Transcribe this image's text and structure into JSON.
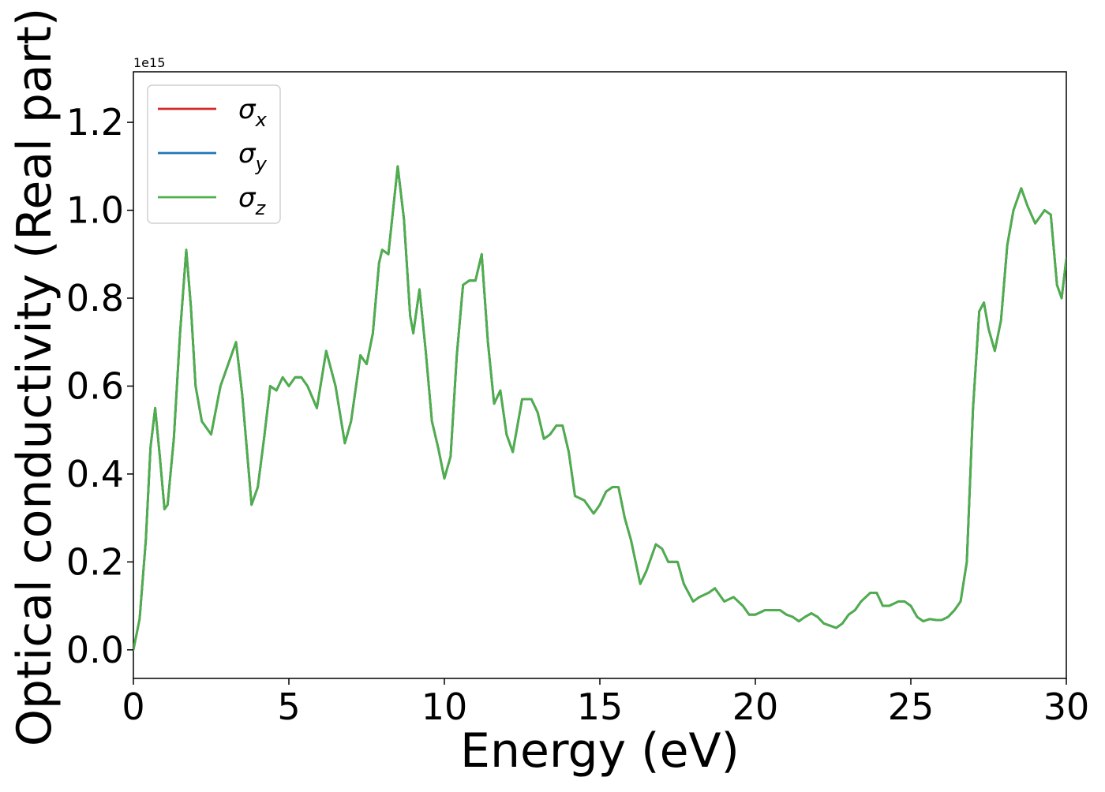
{
  "chart_data": {
    "type": "line",
    "title": "",
    "xlabel": "Energy (eV)",
    "ylabel": "Optical conductivity (Real part)",
    "y_offset_label": "1e15",
    "xlim": [
      0,
      30
    ],
    "ylim": [
      -0.065,
      1.315
    ],
    "y_scale_factor": 1000000000000000.0,
    "xticks": [
      0,
      5,
      10,
      15,
      20,
      25,
      30
    ],
    "yticks": [
      0.0,
      0.2,
      0.4,
      0.6,
      0.8,
      1.0,
      1.2
    ],
    "xtick_labels": [
      "0",
      "5",
      "10",
      "15",
      "20",
      "25",
      "30"
    ],
    "ytick_labels": [
      "0.0",
      "0.2",
      "0.4",
      "0.6",
      "0.8",
      "1.0",
      "1.2"
    ],
    "grid": false,
    "legend_position": "top-left",
    "series": [
      {
        "name": "σx",
        "name_base": "σ",
        "name_sub": "x",
        "color": "#d62728",
        "x": [
          0,
          0.2,
          0.4,
          0.55,
          0.7,
          0.85,
          1.0,
          1.1,
          1.3,
          1.5,
          1.7,
          1.85,
          2.0,
          2.2,
          2.5,
          2.8,
          3.1,
          3.3,
          3.5,
          3.8,
          4.0,
          4.2,
          4.4,
          4.6,
          4.8,
          5.0,
          5.2,
          5.4,
          5.6,
          5.9,
          6.2,
          6.5,
          6.8,
          7.0,
          7.3,
          7.5,
          7.7,
          7.9,
          8.0,
          8.2,
          8.5,
          8.7,
          8.9,
          9.0,
          9.2,
          9.4,
          9.6,
          9.8,
          10.0,
          10.2,
          10.4,
          10.6,
          10.8,
          11.0,
          11.2,
          11.4,
          11.6,
          11.8,
          12.0,
          12.2,
          12.5,
          12.8,
          13.0,
          13.2,
          13.4,
          13.6,
          13.8,
          14.0,
          14.2,
          14.5,
          14.8,
          15.0,
          15.2,
          15.4,
          15.6,
          15.8,
          16.0,
          16.3,
          16.5,
          16.8,
          17.0,
          17.2,
          17.5,
          17.7,
          18.0,
          18.2,
          18.5,
          18.7,
          19.0,
          19.3,
          19.6,
          19.8,
          20.0,
          20.3,
          20.6,
          20.8,
          21.0,
          21.2,
          21.4,
          21.6,
          21.8,
          22.0,
          22.2,
          22.4,
          22.6,
          22.8,
          23.0,
          23.2,
          23.4,
          23.7,
          23.9,
          24.1,
          24.3,
          24.6,
          24.8,
          25.0,
          25.2,
          25.4,
          25.6,
          25.8,
          26.0,
          26.2,
          26.4,
          26.6,
          26.8,
          27.0,
          27.2,
          27.35,
          27.5,
          27.7,
          27.9,
          28.1,
          28.3,
          28.55,
          28.75,
          29.0,
          29.3,
          29.5,
          29.7,
          29.85,
          30.0
        ],
        "y": [
          0.0,
          0.07,
          0.25,
          0.46,
          0.55,
          0.44,
          0.32,
          0.33,
          0.48,
          0.72,
          0.91,
          0.78,
          0.6,
          0.52,
          0.49,
          0.6,
          0.66,
          0.7,
          0.58,
          0.33,
          0.37,
          0.48,
          0.6,
          0.59,
          0.62,
          0.6,
          0.62,
          0.62,
          0.6,
          0.55,
          0.68,
          0.6,
          0.47,
          0.52,
          0.67,
          0.65,
          0.72,
          0.88,
          0.91,
          0.9,
          1.1,
          0.98,
          0.76,
          0.72,
          0.82,
          0.68,
          0.52,
          0.46,
          0.39,
          0.44,
          0.67,
          0.83,
          0.84,
          0.84,
          0.9,
          0.7,
          0.56,
          0.59,
          0.49,
          0.45,
          0.57,
          0.57,
          0.54,
          0.48,
          0.49,
          0.51,
          0.51,
          0.45,
          0.35,
          0.34,
          0.31,
          0.33,
          0.36,
          0.37,
          0.37,
          0.3,
          0.25,
          0.15,
          0.18,
          0.24,
          0.23,
          0.2,
          0.2,
          0.15,
          0.11,
          0.12,
          0.13,
          0.14,
          0.11,
          0.12,
          0.1,
          0.08,
          0.08,
          0.09,
          0.09,
          0.09,
          0.08,
          0.075,
          0.065,
          0.075,
          0.083,
          0.075,
          0.06,
          0.055,
          0.05,
          0.06,
          0.08,
          0.09,
          0.11,
          0.13,
          0.13,
          0.1,
          0.1,
          0.11,
          0.11,
          0.1,
          0.075,
          0.065,
          0.07,
          0.068,
          0.068,
          0.075,
          0.09,
          0.11,
          0.2,
          0.55,
          0.77,
          0.79,
          0.73,
          0.68,
          0.75,
          0.92,
          1.0,
          1.05,
          1.01,
          0.97,
          1.0,
          0.99,
          0.83,
          0.8,
          0.89
        ]
      },
      {
        "name": "σy",
        "name_base": "σ",
        "name_sub": "y",
        "color": "#1f77b4",
        "x": [
          0,
          0.2,
          0.4,
          0.55,
          0.7,
          0.85,
          1.0,
          1.1,
          1.3,
          1.5,
          1.7,
          1.85,
          2.0,
          2.2,
          2.5,
          2.8,
          3.1,
          3.3,
          3.5,
          3.8,
          4.0,
          4.2,
          4.4,
          4.6,
          4.8,
          5.0,
          5.2,
          5.4,
          5.6,
          5.9,
          6.2,
          6.5,
          6.8,
          7.0,
          7.3,
          7.5,
          7.7,
          7.9,
          8.0,
          8.2,
          8.5,
          8.7,
          8.9,
          9.0,
          9.2,
          9.4,
          9.6,
          9.8,
          10.0,
          10.2,
          10.4,
          10.6,
          10.8,
          11.0,
          11.2,
          11.4,
          11.6,
          11.8,
          12.0,
          12.2,
          12.5,
          12.8,
          13.0,
          13.2,
          13.4,
          13.6,
          13.8,
          14.0,
          14.2,
          14.5,
          14.8,
          15.0,
          15.2,
          15.4,
          15.6,
          15.8,
          16.0,
          16.3,
          16.5,
          16.8,
          17.0,
          17.2,
          17.5,
          17.7,
          18.0,
          18.2,
          18.5,
          18.7,
          19.0,
          19.3,
          19.6,
          19.8,
          20.0,
          20.3,
          20.6,
          20.8,
          21.0,
          21.2,
          21.4,
          21.6,
          21.8,
          22.0,
          22.2,
          22.4,
          22.6,
          22.8,
          23.0,
          23.2,
          23.4,
          23.7,
          23.9,
          24.1,
          24.3,
          24.6,
          24.8,
          25.0,
          25.2,
          25.4,
          25.6,
          25.8,
          26.0,
          26.2,
          26.4,
          26.6,
          26.8,
          27.0,
          27.2,
          27.35,
          27.5,
          27.7,
          27.9,
          28.1,
          28.3,
          28.55,
          28.75,
          29.0,
          29.3,
          29.5,
          29.7,
          29.85,
          30.0
        ],
        "y": [
          0.0,
          0.07,
          0.25,
          0.46,
          0.55,
          0.44,
          0.32,
          0.33,
          0.48,
          0.72,
          0.91,
          0.78,
          0.6,
          0.52,
          0.49,
          0.6,
          0.66,
          0.7,
          0.58,
          0.33,
          0.37,
          0.48,
          0.6,
          0.59,
          0.62,
          0.6,
          0.62,
          0.62,
          0.6,
          0.55,
          0.68,
          0.6,
          0.47,
          0.52,
          0.67,
          0.65,
          0.72,
          0.88,
          0.91,
          0.9,
          1.1,
          0.98,
          0.76,
          0.72,
          0.82,
          0.68,
          0.52,
          0.46,
          0.39,
          0.44,
          0.67,
          0.83,
          0.84,
          0.84,
          0.9,
          0.7,
          0.56,
          0.59,
          0.49,
          0.45,
          0.57,
          0.57,
          0.54,
          0.48,
          0.49,
          0.51,
          0.51,
          0.45,
          0.35,
          0.34,
          0.31,
          0.33,
          0.36,
          0.37,
          0.37,
          0.3,
          0.25,
          0.15,
          0.18,
          0.24,
          0.23,
          0.2,
          0.2,
          0.15,
          0.11,
          0.12,
          0.13,
          0.14,
          0.11,
          0.12,
          0.1,
          0.08,
          0.08,
          0.09,
          0.09,
          0.09,
          0.08,
          0.075,
          0.065,
          0.075,
          0.083,
          0.075,
          0.06,
          0.055,
          0.05,
          0.06,
          0.08,
          0.09,
          0.11,
          0.13,
          0.13,
          0.1,
          0.1,
          0.11,
          0.11,
          0.1,
          0.075,
          0.065,
          0.07,
          0.068,
          0.068,
          0.075,
          0.09,
          0.11,
          0.2,
          0.55,
          0.77,
          0.79,
          0.73,
          0.68,
          0.75,
          0.92,
          1.0,
          1.05,
          1.01,
          0.97,
          1.0,
          0.99,
          0.83,
          0.8,
          0.89
        ]
      },
      {
        "name": "σz",
        "name_base": "σ",
        "name_sub": "z",
        "color": "#4daf4a",
        "x": [
          0,
          0.2,
          0.4,
          0.55,
          0.7,
          0.85,
          1.0,
          1.1,
          1.3,
          1.5,
          1.7,
          1.85,
          2.0,
          2.2,
          2.5,
          2.8,
          3.1,
          3.3,
          3.5,
          3.8,
          4.0,
          4.2,
          4.4,
          4.6,
          4.8,
          5.0,
          5.2,
          5.4,
          5.6,
          5.9,
          6.2,
          6.5,
          6.8,
          7.0,
          7.3,
          7.5,
          7.7,
          7.9,
          8.0,
          8.2,
          8.5,
          8.7,
          8.9,
          9.0,
          9.2,
          9.4,
          9.6,
          9.8,
          10.0,
          10.2,
          10.4,
          10.6,
          10.8,
          11.0,
          11.2,
          11.4,
          11.6,
          11.8,
          12.0,
          12.2,
          12.5,
          12.8,
          13.0,
          13.2,
          13.4,
          13.6,
          13.8,
          14.0,
          14.2,
          14.5,
          14.8,
          15.0,
          15.2,
          15.4,
          15.6,
          15.8,
          16.0,
          16.3,
          16.5,
          16.8,
          17.0,
          17.2,
          17.5,
          17.7,
          18.0,
          18.2,
          18.5,
          18.7,
          19.0,
          19.3,
          19.6,
          19.8,
          20.0,
          20.3,
          20.6,
          20.8,
          21.0,
          21.2,
          21.4,
          21.6,
          21.8,
          22.0,
          22.2,
          22.4,
          22.6,
          22.8,
          23.0,
          23.2,
          23.4,
          23.7,
          23.9,
          24.1,
          24.3,
          24.6,
          24.8,
          25.0,
          25.2,
          25.4,
          25.6,
          25.8,
          26.0,
          26.2,
          26.4,
          26.6,
          26.8,
          27.0,
          27.2,
          27.35,
          27.5,
          27.7,
          27.9,
          28.1,
          28.3,
          28.55,
          28.75,
          29.0,
          29.3,
          29.5,
          29.7,
          29.85,
          30.0
        ],
        "y": [
          0.0,
          0.07,
          0.25,
          0.46,
          0.55,
          0.44,
          0.32,
          0.33,
          0.48,
          0.72,
          0.91,
          0.78,
          0.6,
          0.52,
          0.49,
          0.6,
          0.66,
          0.7,
          0.58,
          0.33,
          0.37,
          0.48,
          0.6,
          0.59,
          0.62,
          0.6,
          0.62,
          0.62,
          0.6,
          0.55,
          0.68,
          0.6,
          0.47,
          0.52,
          0.67,
          0.65,
          0.72,
          0.88,
          0.91,
          0.9,
          1.1,
          0.98,
          0.76,
          0.72,
          0.82,
          0.68,
          0.52,
          0.46,
          0.39,
          0.44,
          0.67,
          0.83,
          0.84,
          0.84,
          0.9,
          0.7,
          0.56,
          0.59,
          0.49,
          0.45,
          0.57,
          0.57,
          0.54,
          0.48,
          0.49,
          0.51,
          0.51,
          0.45,
          0.35,
          0.34,
          0.31,
          0.33,
          0.36,
          0.37,
          0.37,
          0.3,
          0.25,
          0.15,
          0.18,
          0.24,
          0.23,
          0.2,
          0.2,
          0.15,
          0.11,
          0.12,
          0.13,
          0.14,
          0.11,
          0.12,
          0.1,
          0.08,
          0.08,
          0.09,
          0.09,
          0.09,
          0.08,
          0.075,
          0.065,
          0.075,
          0.083,
          0.075,
          0.06,
          0.055,
          0.05,
          0.06,
          0.08,
          0.09,
          0.11,
          0.13,
          0.13,
          0.1,
          0.1,
          0.11,
          0.11,
          0.1,
          0.075,
          0.065,
          0.07,
          0.068,
          0.068,
          0.075,
          0.09,
          0.11,
          0.2,
          0.55,
          0.77,
          0.79,
          0.73,
          0.68,
          0.75,
          0.92,
          1.0,
          1.05,
          1.01,
          0.97,
          1.0,
          0.99,
          0.83,
          0.8,
          0.89
        ]
      }
    ]
  }
}
